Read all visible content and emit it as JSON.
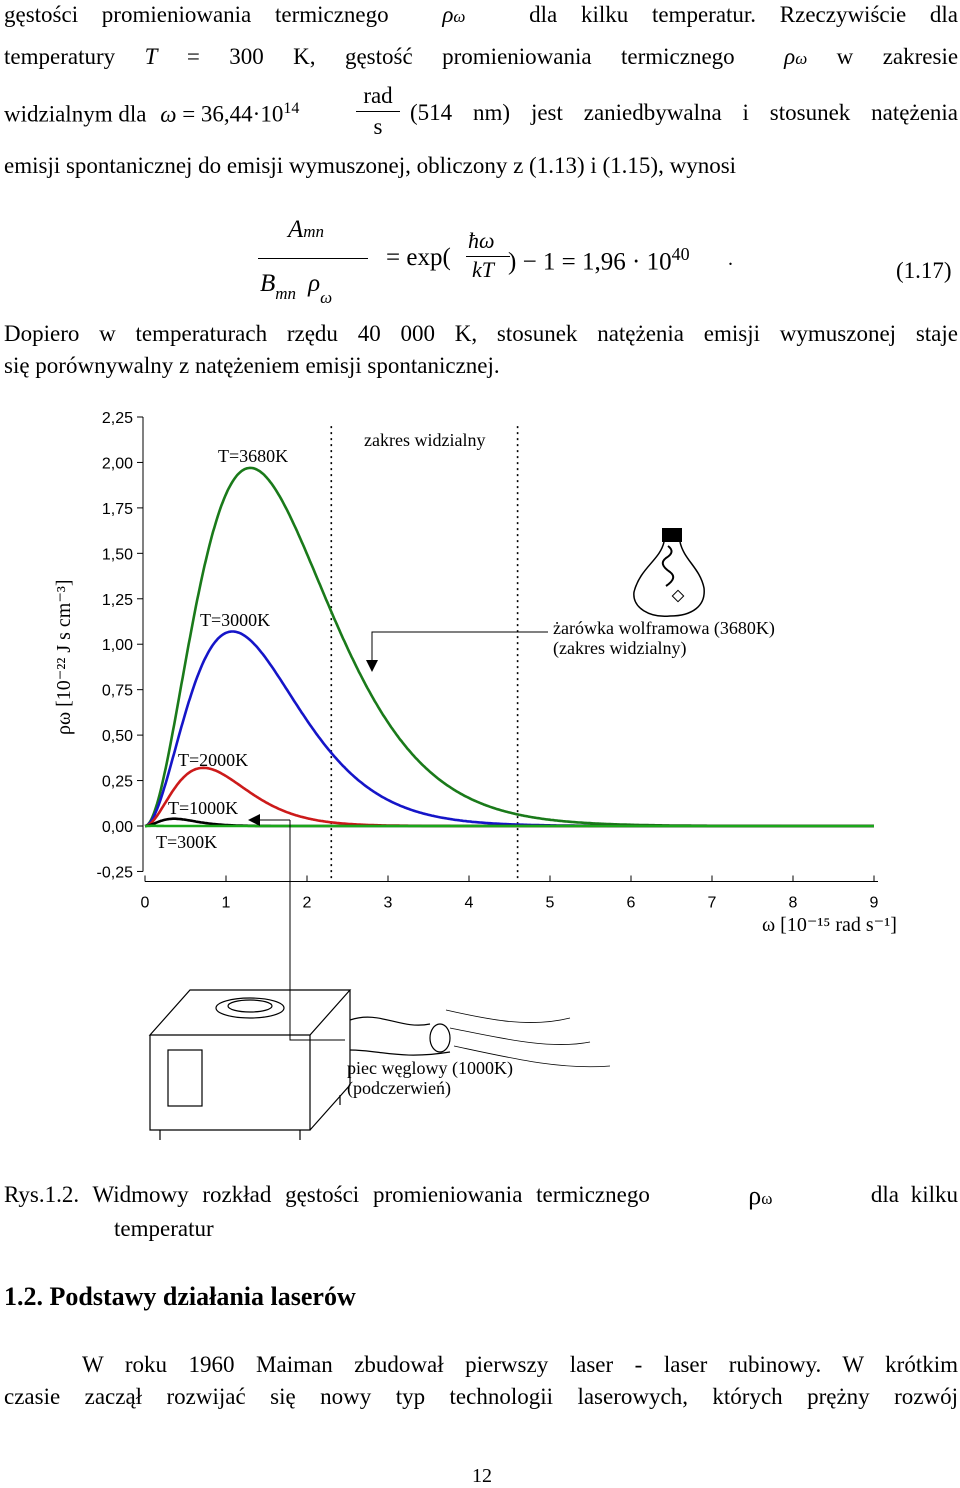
{
  "text": {
    "l1a": "gęstości promieniowania termicznego",
    "l1b": "dla kilku temperatur. Rzeczywiście dla",
    "l2a": "temperatury",
    "l2b": "= 300 K, gęstość promieniowania termicznego",
    "l2c": "w zakresie",
    "l3a": "widzialnym dla",
    "l3b": "= 36,44·10",
    "l3exp": "14",
    "l3num": "rad",
    "l3den": "s",
    "l3c": "(514 nm) jest zaniedbywalna i stosunek natężenia",
    "l4": "emisji spontanicznej do emisji wymuszonej, obliczony z (1.13) i (1.15), wynosi",
    "eq_num": "A",
    "eq_num_sub": "mn",
    "eq_den": "B",
    "eq_den_sub": "mn",
    "eq_exp": "= exp(",
    "eq_frac_num": "ħω",
    "eq_frac_den": "kT",
    "eq_rest": ") − 1 = 1,96 · 10",
    "eq_pow": "40",
    "eq_dot": ".",
    "eq_label": "(1.17)",
    "p2a": "Dopiero w temperaturach rzędu 40 000 K, stosunek natężenia emisji wymuszonej staje",
    "p2b": "się porównywalny z natężeniem emisji spontanicznej.",
    "caption_a": "Rys.1.2. Widmowy rozkład gęstości promieniowania termicznego",
    "caption_sym": "ρ",
    "caption_sub": "ω",
    "caption_b": "dla kilku",
    "caption_c": "temperatur",
    "heading": "1.2. Podstawy działania laserów",
    "p3a": "W roku 1960 Maiman zbudował pierwszy laser - laser rubinowy. W krótkim",
    "p3b": "czasie zaczął rozwijać się nowy typ technologii laserowych, których prężny rozwój",
    "page_number": "12",
    "rho": "ρ",
    "omega": "ω",
    "T": "T"
  },
  "chart_data": {
    "type": "line",
    "xlabel": "ω [10⁻¹⁵ rad s⁻¹]",
    "ylabel": "ρω [10⁻²² J s cm⁻³]",
    "xlim": [
      0,
      9
    ],
    "ylim": [
      -0.25,
      2.25
    ],
    "x_ticks": [
      "0",
      "1",
      "2",
      "3",
      "4",
      "5",
      "6",
      "7",
      "8",
      "9"
    ],
    "y_ticks": [
      "2,25",
      "2,00",
      "1,75",
      "1,50",
      "1,25",
      "1,00",
      "0,75",
      "0,50",
      "0,25",
      "0,00",
      "-0,25"
    ],
    "visible_band": [
      2.3,
      4.6
    ],
    "series": [
      {
        "name": "T=3680K",
        "color": "#1a7a1a",
        "peak_x": 1.3,
        "peak_y": 1.97
      },
      {
        "name": "T=3000K",
        "color": "#1515c8",
        "peak_x": 1.08,
        "peak_y": 1.07
      },
      {
        "name": "T=2000K",
        "color": "#cc1a1a",
        "peak_x": 0.72,
        "peak_y": 0.32
      },
      {
        "name": "T=1000K",
        "color": "#000000",
        "peak_x": 0.36,
        "peak_y": 0.04
      },
      {
        "name": "T=300K",
        "color": "#1aa81a",
        "peak_x": 0.1,
        "peak_y": 0.001
      }
    ],
    "annotations": {
      "visible_range": "zakres widzialny",
      "bulb_line1": "żarówka wolframowa (3680K)",
      "bulb_line2": "(zakres widzialny)",
      "stove_line1": "piec węglowy (1000K)",
      "stove_line2": "(podczerwień)"
    }
  }
}
